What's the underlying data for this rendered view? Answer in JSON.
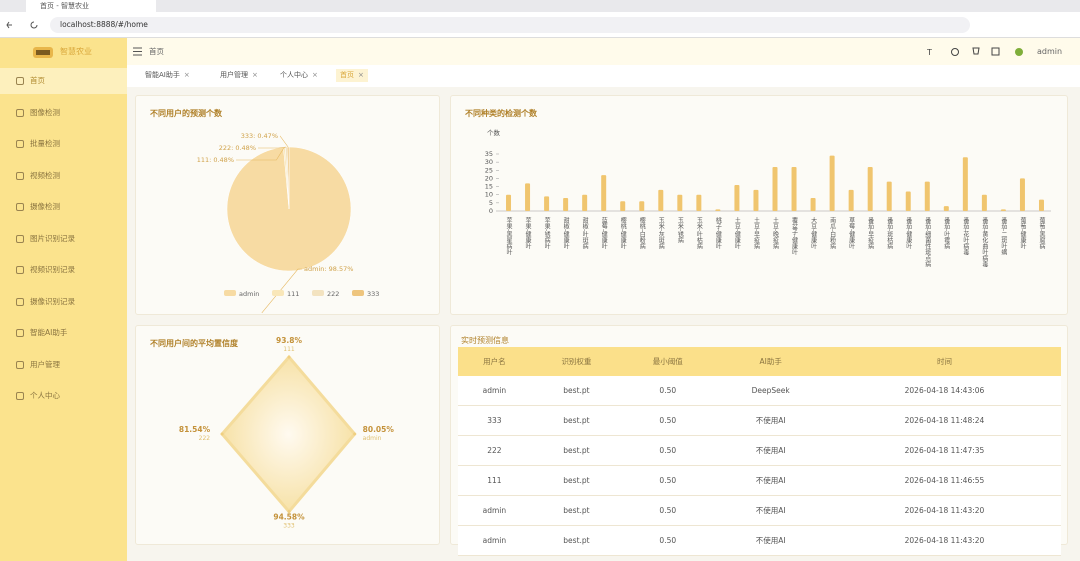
{
  "browser": {
    "tab_title": "首页 - 智慧农业",
    "url": "localhost:8888/#/home"
  },
  "sidebar": {
    "logo_text": "智慧农业",
    "menu": [
      "首页",
      "图像检测",
      "批量检测",
      "视频检测",
      "摄像检测",
      "图片识别记录",
      "视频识别记录",
      "摄像识别记录",
      "智能AI助手",
      "用户管理",
      "个人中心"
    ]
  },
  "header": {
    "breadcrumb": "首页",
    "user": "admin"
  },
  "tabs": [
    "智能AI助手",
    "用户管理",
    "个人中心",
    "首页"
  ],
  "chart_data": [
    {
      "type": "pie",
      "title": "不同用户的预测个数",
      "categories": [
        "admin",
        "111",
        "222",
        "333"
      ],
      "values": [
        98.57,
        0.48,
        0.48,
        0.47
      ],
      "value_labels": [
        "admin: 98.57%",
        "111: 0.48%",
        "222: 0.48%",
        "333: 0.47%"
      ],
      "colors": [
        "#f7dba3",
        "#f9e7b9",
        "#f3e3c0",
        "#eec57e"
      ]
    },
    {
      "type": "bar",
      "title": "不同种类的检测个数",
      "y_label": "个数",
      "categories": [
        "苹果-黑星病叶",
        "苹果-健康叶",
        "苹果-锈病叶",
        "甜椒-健康叶",
        "甜椒-叶斑病",
        "蓝莓-健康叶",
        "樱桃-健康叶",
        "樱桃-白粉病",
        "玉米-灰斑病",
        "玉米-锈病",
        "玉米-叶枯病",
        "桃子-健康叶",
        "土豆-健康叶",
        "土豆-早疫病",
        "土豆-晚疫病",
        "覆盆子-健康叶",
        "大豆-健康叶",
        "南瓜-白粉病",
        "草莓-健康叶",
        "番茄-早疫病",
        "番茄-斑枯病",
        "番茄-健康叶",
        "番茄-细菌性斑点病",
        "番茄-叶霉病",
        "番茄-花叶病毒",
        "番茄-黄化曲叶病毒",
        "番茄-二斑叶螨",
        "葡萄-健康叶",
        "葡萄-黑腐病"
      ],
      "values": [
        10,
        17,
        9,
        8,
        10,
        22,
        6,
        6,
        13,
        10,
        10,
        1,
        16,
        13,
        27,
        27,
        8,
        34,
        13,
        27,
        18,
        12,
        18,
        3,
        33,
        10,
        1,
        20,
        7
      ],
      "ylim": [
        0,
        35
      ],
      "yticks": [
        0,
        5,
        10,
        15,
        20,
        25,
        30,
        35
      ],
      "color": "#f0c56e"
    },
    {
      "type": "radar",
      "title": "不同用户间的平均置信度",
      "categories": [
        "111",
        "admin",
        "333",
        "222"
      ],
      "values": [
        93.8,
        80.05,
        94.58,
        81.54
      ],
      "value_labels": [
        "93.8%",
        "80.05%",
        "94.58%",
        "81.54%"
      ],
      "rlim": [
        0,
        100
      ],
      "color": "#f7e2a8"
    }
  ],
  "table": {
    "title": "实时预测信息",
    "columns": [
      "用户名",
      "识别权重",
      "最小阈值",
      "AI助手",
      "时间"
    ],
    "rows": [
      [
        "admin",
        "best.pt",
        "0.50",
        "DeepSeek",
        "2026-04-18 14:43:06"
      ],
      [
        "333",
        "best.pt",
        "0.50",
        "不使用AI",
        "2026-04-18 11:48:24"
      ],
      [
        "222",
        "best.pt",
        "0.50",
        "不使用AI",
        "2026-04-18 11:47:35"
      ],
      [
        "111",
        "best.pt",
        "0.50",
        "不使用AI",
        "2026-04-18 11:46:55"
      ],
      [
        "admin",
        "best.pt",
        "0.50",
        "不使用AI",
        "2026-04-18 11:43:20"
      ],
      [
        "admin",
        "best.pt",
        "0.50",
        "不使用AI",
        "2026-04-18 11:43:20"
      ]
    ]
  }
}
